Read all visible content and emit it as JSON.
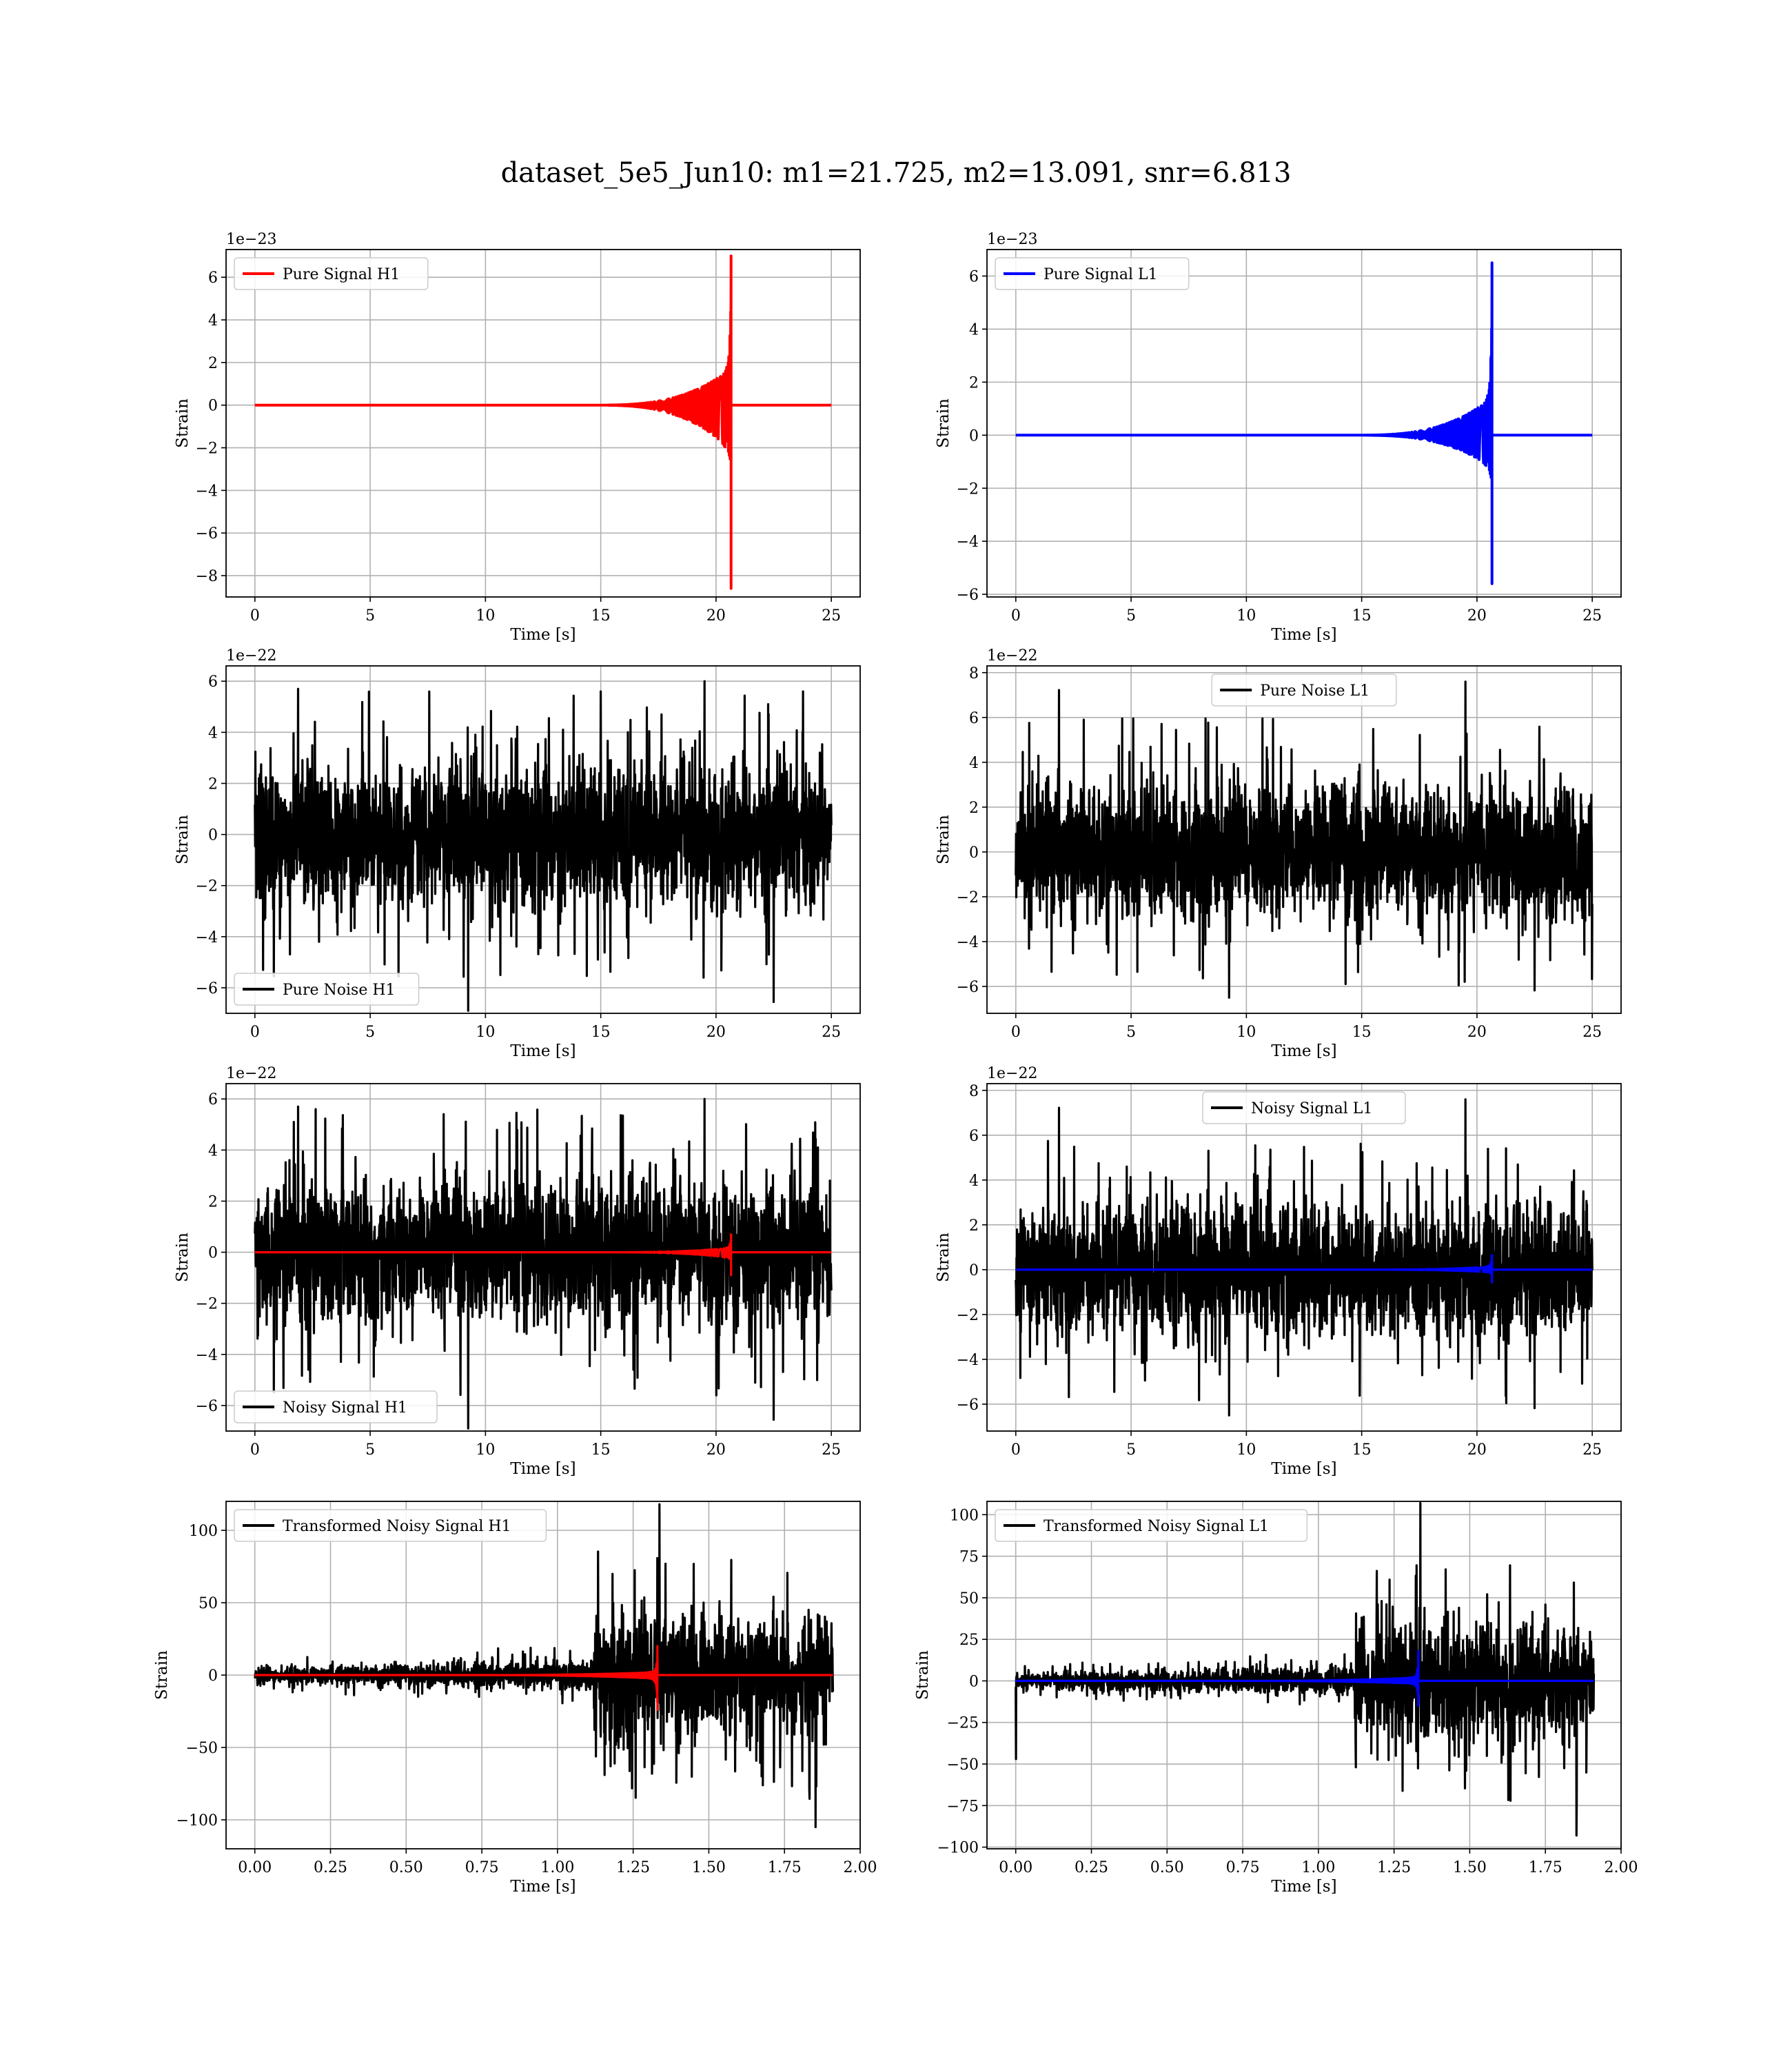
{
  "figure": {
    "title": "dataset_5e5_Jun10: m1=21.725, m2=13.091, snr=6.813"
  },
  "colors": {
    "h1_signal": "#ff0000",
    "l1_signal": "#0000ff",
    "noise": "#000000"
  },
  "chart_data": [
    {
      "id": "pure-signal-h1",
      "type": "line",
      "xlabel": "Time [s]",
      "ylabel": "Strain",
      "offset_text": "1e−23",
      "xlim": [
        -1.25,
        26.25
      ],
      "ylim": [
        -9.0,
        7.3
      ],
      "xticks": [
        0,
        5,
        10,
        15,
        20,
        25
      ],
      "xtick_labels": [
        "0",
        "5",
        "10",
        "15",
        "20",
        "25"
      ],
      "yticks": [
        -8,
        -6,
        -4,
        -2,
        0,
        2,
        4,
        6
      ],
      "ytick_labels": [
        "−8",
        "−6",
        "−4",
        "−2",
        "0",
        "2",
        "4",
        "6"
      ],
      "legend": "top-left",
      "series": [
        {
          "name": "Pure Signal H1",
          "color": "#ff0000",
          "kind": "chirp",
          "x_end": 25,
          "merger_x": 20.65,
          "peak_pos": 7.0,
          "peak_neg": -8.6,
          "plateau": 1.7,
          "onset_x": 14.5
        }
      ]
    },
    {
      "id": "pure-signal-l1",
      "type": "line",
      "xlabel": "Time [s]",
      "ylabel": "Strain",
      "offset_text": "1e−23",
      "xlim": [
        -1.25,
        26.25
      ],
      "ylim": [
        -6.1,
        7.0
      ],
      "xticks": [
        0,
        5,
        10,
        15,
        20,
        25
      ],
      "xtick_labels": [
        "0",
        "5",
        "10",
        "15",
        "20",
        "25"
      ],
      "yticks": [
        -6,
        -4,
        -2,
        0,
        2,
        4,
        6
      ],
      "ytick_labels": [
        "−6",
        "−4",
        "−2",
        "0",
        "2",
        "4",
        "6"
      ],
      "legend": "top-left",
      "series": [
        {
          "name": "Pure Signal L1",
          "color": "#0000ff",
          "kind": "chirp",
          "x_end": 25,
          "merger_x": 20.65,
          "peak_pos": 6.5,
          "peak_neg": -5.6,
          "plateau": 1.4,
          "onset_x": 14.5
        }
      ]
    },
    {
      "id": "pure-noise-h1",
      "type": "line",
      "xlabel": "Time [s]",
      "ylabel": "Strain",
      "offset_text": "1e−22",
      "xlim": [
        -1.25,
        26.25
      ],
      "ylim": [
        -7.0,
        6.6
      ],
      "xticks": [
        0,
        5,
        10,
        15,
        20,
        25
      ],
      "xtick_labels": [
        "0",
        "5",
        "10",
        "15",
        "20",
        "25"
      ],
      "yticks": [
        -6,
        -4,
        -2,
        0,
        2,
        4,
        6
      ],
      "ytick_labels": [
        "−6",
        "−4",
        "−2",
        "0",
        "2",
        "4",
        "6"
      ],
      "legend": "bottom-left",
      "series": [
        {
          "name": "Pure Noise H1",
          "color": "#000000",
          "kind": "noise",
          "x_end": 25,
          "band": 3.2,
          "spike_max": 6.0,
          "spike_min": -6.9
        }
      ]
    },
    {
      "id": "pure-noise-l1",
      "type": "line",
      "xlabel": "Time [s]",
      "ylabel": "Strain",
      "offset_text": "1e−22",
      "xlim": [
        -1.25,
        26.25
      ],
      "ylim": [
        -7.2,
        8.3
      ],
      "xticks": [
        0,
        5,
        10,
        15,
        20,
        25
      ],
      "xtick_labels": [
        "0",
        "5",
        "10",
        "15",
        "20",
        "25"
      ],
      "yticks": [
        -6,
        -4,
        -2,
        0,
        2,
        4,
        6,
        8
      ],
      "ytick_labels": [
        "−6",
        "−4",
        "−2",
        "0",
        "2",
        "4",
        "6",
        "8"
      ],
      "legend": "top-center",
      "series": [
        {
          "name": "Pure Noise L1",
          "color": "#000000",
          "kind": "noise",
          "x_end": 25,
          "band": 3.4,
          "spike_max": 7.6,
          "spike_min": -6.5
        }
      ]
    },
    {
      "id": "noisy-signal-h1",
      "type": "line",
      "xlabel": "Time [s]",
      "ylabel": "Strain",
      "offset_text": "1e−22",
      "xlim": [
        -1.25,
        26.25
      ],
      "ylim": [
        -7.0,
        6.6
      ],
      "xticks": [
        0,
        5,
        10,
        15,
        20,
        25
      ],
      "xtick_labels": [
        "0",
        "5",
        "10",
        "15",
        "20",
        "25"
      ],
      "yticks": [
        -6,
        -4,
        -2,
        0,
        2,
        4,
        6
      ],
      "ytick_labels": [
        "−6",
        "−4",
        "−2",
        "0",
        "2",
        "4",
        "6"
      ],
      "legend": "bottom-left",
      "series": [
        {
          "name": "Noisy Signal H1",
          "color": "#000000",
          "kind": "noise",
          "x_end": 25,
          "band": 3.2,
          "spike_max": 6.0,
          "spike_min": -6.9
        },
        {
          "name": "",
          "color": "#ff0000",
          "kind": "chirp",
          "x_end": 25,
          "merger_x": 20.65,
          "peak_pos": 0.7,
          "peak_neg": -0.9,
          "plateau": 0.17,
          "onset_x": 14.5
        }
      ]
    },
    {
      "id": "noisy-signal-l1",
      "type": "line",
      "xlabel": "Time [s]",
      "ylabel": "Strain",
      "offset_text": "1e−22",
      "xlim": [
        -1.25,
        26.25
      ],
      "ylim": [
        -7.2,
        8.3
      ],
      "xticks": [
        0,
        5,
        10,
        15,
        20,
        25
      ],
      "xtick_labels": [
        "0",
        "5",
        "10",
        "15",
        "20",
        "25"
      ],
      "yticks": [
        -6,
        -4,
        -2,
        0,
        2,
        4,
        6,
        8
      ],
      "ytick_labels": [
        "−6",
        "−4",
        "−2",
        "0",
        "2",
        "4",
        "6",
        "8"
      ],
      "legend": "top-center",
      "series": [
        {
          "name": "Noisy Signal L1",
          "color": "#000000",
          "kind": "noise",
          "x_end": 25,
          "band": 3.4,
          "spike_max": 7.6,
          "spike_min": -6.5
        },
        {
          "name": "",
          "color": "#0000ff",
          "kind": "chirp",
          "x_end": 25,
          "merger_x": 20.65,
          "peak_pos": 0.65,
          "peak_neg": -0.56,
          "plateau": 0.14,
          "onset_x": 14.5
        }
      ]
    },
    {
      "id": "transformed-h1",
      "type": "line",
      "xlabel": "Time [s]",
      "ylabel": "Strain",
      "offset_text": "",
      "xlim": [
        -0.095,
        2.0
      ],
      "ylim": [
        -120,
        120
      ],
      "xticks": [
        0,
        0.25,
        0.5,
        0.75,
        1.0,
        1.25,
        1.5,
        1.75,
        2.0
      ],
      "xtick_labels": [
        "0.00",
        "0.25",
        "0.50",
        "0.75",
        "1.00",
        "1.25",
        "1.50",
        "1.75",
        "2.00"
      ],
      "yticks": [
        -100,
        -50,
        0,
        50,
        100
      ],
      "ytick_labels": [
        "−100",
        "−50",
        "0",
        "50",
        "100"
      ],
      "legend": "top-left",
      "series": [
        {
          "name": "Transformed Noisy Signal H1",
          "color": "#000000",
          "kind": "whitened",
          "x_end": 1.91,
          "step_x": 1.12,
          "low_band": 6,
          "high_band": 45,
          "spike_max": 118,
          "spike_min": -105
        },
        {
          "name": "",
          "color": "#ff0000",
          "kind": "chirp",
          "x_end": 1.91,
          "merger_x": 1.33,
          "peak_pos": 20,
          "peak_neg": -24,
          "plateau": 2,
          "onset_x": 0.55
        }
      ]
    },
    {
      "id": "transformed-l1",
      "type": "line",
      "xlabel": "Time [s]",
      "ylabel": "Strain",
      "offset_text": "",
      "xlim": [
        -0.095,
        2.0
      ],
      "ylim": [
        -101,
        108
      ],
      "xticks": [
        0,
        0.25,
        0.5,
        0.75,
        1.0,
        1.25,
        1.5,
        1.75,
        2.0
      ],
      "xtick_labels": [
        "0.00",
        "0.25",
        "0.50",
        "0.75",
        "1.00",
        "1.25",
        "1.50",
        "1.75",
        "2.00"
      ],
      "yticks": [
        -100,
        -75,
        -50,
        -25,
        0,
        25,
        50,
        75,
        100
      ],
      "ytick_labels": [
        "−100",
        "−75",
        "−50",
        "−25",
        "0",
        "25",
        "50",
        "75",
        "100"
      ],
      "legend": "top-left",
      "series": [
        {
          "name": "Transformed Noisy Signal L1",
          "color": "#000000",
          "kind": "whitened",
          "x_end": 1.91,
          "step_x": 1.12,
          "low_band": 5,
          "high_band": 38,
          "spike_max": 107,
          "spike_min": -93,
          "start_spike": -47
        },
        {
          "name": "",
          "color": "#0000ff",
          "kind": "chirp",
          "x_end": 1.91,
          "merger_x": 1.33,
          "peak_pos": 18,
          "peak_neg": -15,
          "plateau": 2,
          "onset_x": 0.55
        }
      ]
    }
  ]
}
